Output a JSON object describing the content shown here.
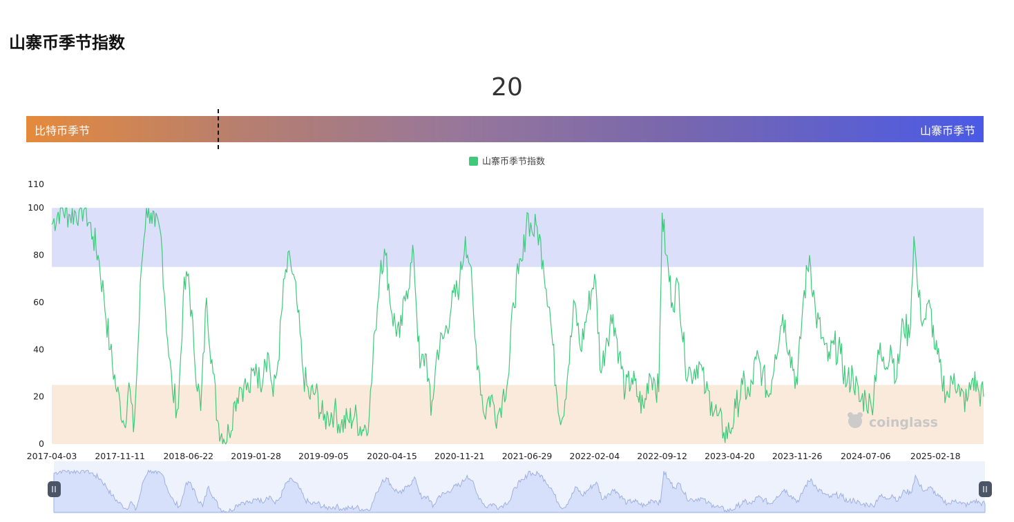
{
  "page": {
    "title": "山寨币季节指数"
  },
  "current_index": "20",
  "season_bar": {
    "left_label": "比特币季节",
    "right_label": "山寨币季节"
  },
  "watermark": "coinglass",
  "colors": {
    "line": "#3ec97b",
    "altcoin_band": "#dcdffa",
    "bitcoin_band": "#faeadb",
    "gradient_start": "#e58a3c",
    "gradient_end": "#4a5ae6"
  },
  "chart_data": {
    "type": "line",
    "title": "",
    "xlabel": "",
    "ylabel": "",
    "ylim": [
      0,
      110
    ],
    "y_ticks": [
      0,
      20,
      40,
      60,
      80,
      100,
      110
    ],
    "x_tick_labels": [
      "2017-04-03",
      "2017-11-11",
      "2018-06-22",
      "2019-01-28",
      "2019-09-05",
      "2020-04-15",
      "2020-11-21",
      "2021-06-29",
      "2022-02-04",
      "2022-09-12",
      "2023-04-20",
      "2023-11-26",
      "2024-07-06",
      "2025-02-18"
    ],
    "x_range": [
      "2017-04-03",
      "2025-07-25"
    ],
    "legend": {
      "position": "top-center",
      "entries": [
        "山寨币季节指数"
      ]
    },
    "bands": [
      {
        "name": "山寨币季节",
        "from": 75,
        "to": 100
      },
      {
        "name": "比特币季节",
        "from": 0,
        "to": 25
      }
    ],
    "series": [
      {
        "name": "山寨币季节指数",
        "x": [
          "2017-04-03",
          "2017-05-01",
          "2017-06-01",
          "2017-07-01",
          "2017-07-20",
          "2017-08-15",
          "2017-09-01",
          "2017-09-20",
          "2017-10-10",
          "2017-11-01",
          "2017-11-11",
          "2017-11-25",
          "2017-12-10",
          "2017-12-25",
          "2018-01-05",
          "2018-01-20",
          "2018-02-05",
          "2018-02-20",
          "2018-03-05",
          "2018-03-25",
          "2018-04-15",
          "2018-05-01",
          "2018-05-20",
          "2018-06-05",
          "2018-06-22",
          "2018-07-10",
          "2018-08-01",
          "2018-08-20",
          "2018-09-10",
          "2018-09-25",
          "2018-10-15",
          "2018-11-01",
          "2018-11-20",
          "2018-12-05",
          "2018-12-20",
          "2019-01-05",
          "2019-01-28",
          "2019-02-10",
          "2019-02-25",
          "2019-03-10",
          "2019-03-25",
          "2019-04-10",
          "2019-05-01",
          "2019-05-20",
          "2019-06-10",
          "2019-07-01",
          "2019-07-20",
          "2019-08-10",
          "2019-09-05",
          "2019-09-20",
          "2019-10-10",
          "2019-11-01",
          "2019-11-25",
          "2019-12-15",
          "2020-01-10",
          "2020-02-01",
          "2020-02-20",
          "2020-03-10",
          "2020-03-25",
          "2020-04-15",
          "2020-05-10",
          "2020-06-01",
          "2020-06-25",
          "2020-07-15",
          "2020-08-05",
          "2020-08-20",
          "2020-09-10",
          "2020-10-01",
          "2020-10-25",
          "2020-11-21",
          "2020-12-10",
          "2020-12-25",
          "2021-01-10",
          "2021-01-25",
          "2021-02-10",
          "2021-02-25",
          "2021-03-10",
          "2021-03-25",
          "2021-04-10",
          "2021-05-01",
          "2021-05-15",
          "2021-06-01",
          "2021-06-15",
          "2021-06-29",
          "2021-07-15",
          "2021-08-01",
          "2021-08-20",
          "2021-09-10",
          "2021-10-01",
          "2021-10-20",
          "2021-11-10",
          "2021-12-01",
          "2021-12-20",
          "2022-01-10",
          "2022-02-04",
          "2022-02-25",
          "2022-03-15",
          "2022-04-05",
          "2022-04-25",
          "2022-05-15",
          "2022-06-05",
          "2022-06-25",
          "2022-07-15",
          "2022-08-01",
          "2022-08-15",
          "2022-09-01",
          "2022-09-12",
          "2022-09-25",
          "2022-10-15",
          "2022-11-05",
          "2022-11-25",
          "2022-12-15",
          "2023-01-10",
          "2023-02-01",
          "2023-02-20",
          "2023-03-10",
          "2023-04-01",
          "2023-04-20",
          "2023-05-10",
          "2023-06-01",
          "2023-06-25",
          "2023-07-15",
          "2023-08-05",
          "2023-08-25",
          "2023-09-15",
          "2023-10-10",
          "2023-11-01",
          "2023-11-26",
          "2023-12-15",
          "2024-01-05",
          "2024-01-25",
          "2024-02-15",
          "2024-03-05",
          "2024-03-25",
          "2024-04-15",
          "2024-05-05",
          "2024-05-25",
          "2024-06-15",
          "2024-07-06",
          "2024-07-25",
          "2024-08-15",
          "2024-09-05",
          "2024-09-25",
          "2024-10-15",
          "2024-11-05",
          "2024-11-25",
          "2024-12-10",
          "2024-12-25",
          "2025-01-10",
          "2025-02-01",
          "2025-02-18",
          "2025-03-10",
          "2025-04-01",
          "2025-04-20",
          "2025-05-10",
          "2025-06-01",
          "2025-06-20",
          "2025-07-10",
          "2025-07-25"
        ],
        "values": [
          93,
          100,
          97,
          99,
          100,
          88,
          80,
          62,
          40,
          22,
          18,
          8,
          26,
          5,
          30,
          75,
          100,
          98,
          92,
          88,
          44,
          22,
          15,
          62,
          72,
          40,
          14,
          62,
          30,
          10,
          2,
          5,
          18,
          24,
          25,
          22,
          34,
          25,
          36,
          38,
          20,
          35,
          70,
          78,
          60,
          30,
          20,
          22,
          10,
          12,
          14,
          8,
          10,
          12,
          6,
          12,
          48,
          78,
          80,
          55,
          45,
          65,
          80,
          32,
          38,
          12,
          40,
          45,
          58,
          68,
          88,
          76,
          45,
          30,
          12,
          20,
          18,
          12,
          20,
          30,
          60,
          72,
          78,
          98,
          90,
          92,
          78,
          58,
          25,
          10,
          32,
          60,
          40,
          55,
          72,
          30,
          45,
          55,
          38,
          22,
          28,
          20,
          15,
          30,
          28,
          22,
          98,
          80,
          60,
          68,
          35,
          30,
          35,
          22,
          18,
          12,
          5,
          5,
          15,
          25,
          20,
          36,
          30,
          20,
          38,
          55,
          40,
          25,
          60,
          80,
          55,
          45,
          35,
          42,
          38,
          25,
          30,
          18,
          20,
          15,
          40,
          32,
          42,
          28,
          52,
          45,
          88,
          62,
          52,
          58,
          40,
          28,
          20,
          30,
          20,
          18,
          28,
          22,
          20
        ]
      }
    ]
  }
}
